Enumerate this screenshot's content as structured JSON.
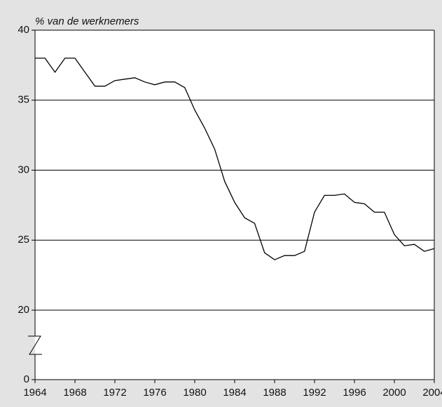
{
  "chart_data": {
    "type": "line",
    "y_label": "% van de werknemers",
    "x": [
      1964,
      1965,
      1966,
      1967,
      1968,
      1969,
      1970,
      1971,
      1972,
      1973,
      1974,
      1975,
      1976,
      1977,
      1978,
      1979,
      1980,
      1981,
      1982,
      1983,
      1984,
      1985,
      1986,
      1987,
      1988,
      1989,
      1990,
      1991,
      1992,
      1993,
      1994,
      1995,
      1996,
      1997,
      1998,
      1999,
      2000,
      2001,
      2002,
      2003,
      2004
    ],
    "series": [
      {
        "color": "#000000",
        "values": [
          38.0,
          38.0,
          37.0,
          38.0,
          38.0,
          37.0,
          36.0,
          36.0,
          36.4,
          36.5,
          36.6,
          36.3,
          36.1,
          36.3,
          36.3,
          35.9,
          34.3,
          33.0,
          31.5,
          29.2,
          27.7,
          26.6,
          26.2,
          24.1,
          23.6,
          23.9,
          23.9,
          24.2,
          27.0,
          28.2,
          28.2,
          28.3,
          27.7,
          27.6,
          27.0,
          27.0,
          25.4,
          24.6,
          24.7,
          24.2,
          24.4
        ]
      }
    ],
    "xlim": [
      1964,
      2004
    ],
    "xticks": [
      1964,
      1968,
      1972,
      1976,
      1980,
      1984,
      1988,
      1992,
      1996,
      2000,
      2004
    ],
    "ylim": [
      0,
      40
    ],
    "yticks": [
      0,
      20,
      25,
      30,
      35,
      40
    ],
    "axis_break": true,
    "grid": true
  }
}
